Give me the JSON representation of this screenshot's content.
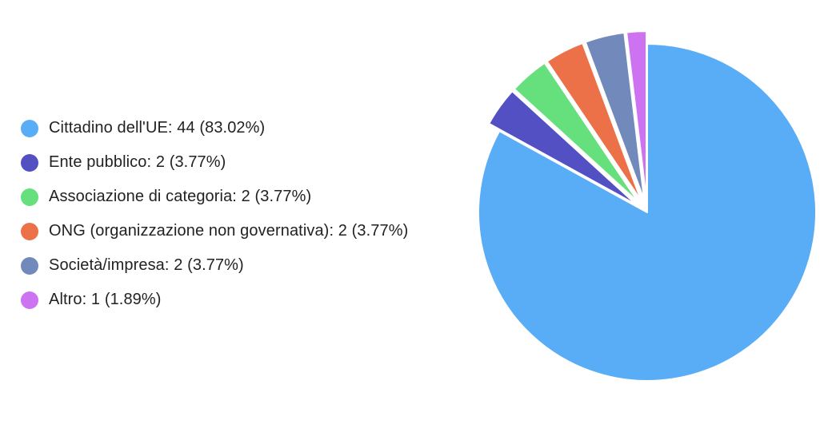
{
  "chart_data": {
    "type": "pie",
    "legend_position": "left",
    "slices": [
      {
        "label": "Cittadino dell'UE: 44 (83.02%)",
        "value": 44,
        "percent": 83.02,
        "color": "#59acf6"
      },
      {
        "label": "Ente pubblico: 2 (3.77%)",
        "value": 2,
        "percent": 3.77,
        "color": "#5350c4"
      },
      {
        "label": "Associazione di categoria: 2 (3.77%)",
        "value": 2,
        "percent": 3.77,
        "color": "#66df7d"
      },
      {
        "label": "ONG (organizzazione non governativa): 2 (3.77%)",
        "value": 2,
        "percent": 3.77,
        "color": "#ec7148"
      },
      {
        "label": "Società/impresa: 2 (3.77%)",
        "value": 2,
        "percent": 3.77,
        "color": "#7189bb"
      },
      {
        "label": "Altro: 1 (1.89%)",
        "value": 1,
        "percent": 1.89,
        "color": "#cd73f1"
      }
    ]
  }
}
